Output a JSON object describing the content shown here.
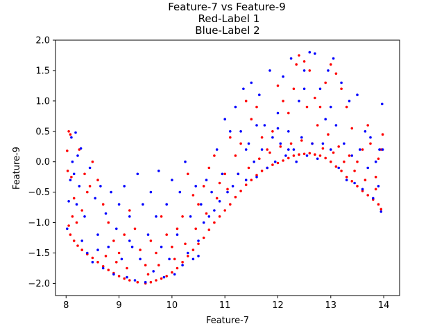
{
  "chart_data": {
    "type": "scatter",
    "title_lines": [
      "Feature-7 vs Feature-9",
      "Red-Label 1",
      "Blue-Label 2"
    ],
    "xlabel": "Feature-7",
    "ylabel": "Feature-9",
    "xlim": [
      7.8,
      14.3
    ],
    "ylim": [
      -2.2,
      2.0
    ],
    "xticks": [
      8,
      9,
      10,
      11,
      12,
      13,
      14
    ],
    "yticks": [
      -2.0,
      -1.5,
      -1.0,
      -0.5,
      0.0,
      0.5,
      1.0,
      1.5,
      2.0
    ],
    "ytick_labels": [
      "−2.0",
      "−1.5",
      "−1.0",
      "−0.5",
      "0.0",
      "0.5",
      "1.0",
      "1.5",
      "2.0"
    ],
    "grid": false,
    "legend": "none",
    "series": [
      {
        "color": "#ff0000",
        "points": [
          [
            8.02,
            0.18
          ],
          [
            8.05,
            0.5
          ],
          [
            8.08,
            0.45
          ],
          [
            8.03,
            -0.15
          ],
          [
            8.1,
            -0.25
          ],
          [
            8.15,
            -0.6
          ],
          [
            8.12,
            -0.9
          ],
          [
            8.05,
            -1.05
          ],
          [
            8.08,
            -1.2
          ],
          [
            8.15,
            -1.3
          ],
          [
            8.22,
            -1.38
          ],
          [
            8.3,
            -1.45
          ],
          [
            8.4,
            -1.52
          ],
          [
            8.5,
            -1.58
          ],
          [
            8.6,
            -1.65
          ],
          [
            8.7,
            -1.72
          ],
          [
            8.8,
            -1.78
          ],
          [
            8.9,
            -1.83
          ],
          [
            9.0,
            -1.88
          ],
          [
            9.1,
            -1.92
          ],
          [
            9.2,
            -1.95
          ],
          [
            9.35,
            -1.98
          ],
          [
            9.5,
            -2.0
          ],
          [
            9.6,
            -1.98
          ],
          [
            9.7,
            -1.95
          ],
          [
            9.8,
            -1.92
          ],
          [
            9.9,
            -1.88
          ],
          [
            10.0,
            -1.82
          ],
          [
            10.1,
            -1.75
          ],
          [
            10.2,
            -1.65
          ],
          [
            10.3,
            -1.55
          ],
          [
            10.4,
            -1.45
          ],
          [
            10.5,
            -1.35
          ],
          [
            10.6,
            -1.25
          ],
          [
            10.7,
            -1.12
          ],
          [
            10.8,
            -1.0
          ],
          [
            10.9,
            -0.9
          ],
          [
            11.0,
            -0.8
          ],
          [
            11.1,
            -0.7
          ],
          [
            11.2,
            -0.58
          ],
          [
            11.3,
            -0.48
          ],
          [
            11.4,
            -0.38
          ],
          [
            11.5,
            -0.3
          ],
          [
            11.6,
            -0.22
          ],
          [
            11.7,
            -0.15
          ],
          [
            11.8,
            -0.1
          ],
          [
            11.9,
            -0.05
          ],
          [
            12.0,
            -0.02
          ],
          [
            12.1,
            0.02
          ],
          [
            12.2,
            0.06
          ],
          [
            12.3,
            0.1
          ],
          [
            12.4,
            0.12
          ],
          [
            12.5,
            0.13
          ],
          [
            12.6,
            0.14
          ],
          [
            12.7,
            0.12
          ],
          [
            12.8,
            0.1
          ],
          [
            12.9,
            0.06
          ],
          [
            13.0,
            0.0
          ],
          [
            13.1,
            -0.08
          ],
          [
            13.2,
            -0.15
          ],
          [
            13.3,
            -0.25
          ],
          [
            13.4,
            -0.32
          ],
          [
            13.5,
            -0.4
          ],
          [
            13.6,
            -0.48
          ],
          [
            13.7,
            -0.55
          ],
          [
            13.8,
            -0.62
          ],
          [
            13.9,
            -0.7
          ],
          [
            13.95,
            -0.78
          ],
          [
            13.98,
            0.45
          ],
          [
            13.95,
            0.2
          ],
          [
            13.9,
            0.05
          ],
          [
            13.85,
            -0.25
          ],
          [
            13.75,
            0.3
          ],
          [
            13.7,
            0.6
          ],
          [
            13.6,
            0.2
          ],
          [
            13.5,
            0.0
          ],
          [
            13.4,
            0.55
          ],
          [
            13.3,
            0.9
          ],
          [
            13.2,
            1.2
          ],
          [
            13.1,
            1.45
          ],
          [
            13.0,
            1.6
          ],
          [
            12.9,
            1.3
          ],
          [
            12.8,
            0.9
          ],
          [
            12.7,
            1.05
          ],
          [
            12.6,
            1.5
          ],
          [
            12.5,
            1.65
          ],
          [
            12.4,
            1.75
          ],
          [
            12.35,
            1.6
          ],
          [
            12.3,
            1.2
          ],
          [
            12.2,
            0.8
          ],
          [
            12.1,
            1.0
          ],
          [
            12.0,
            1.25
          ],
          [
            11.9,
            0.5
          ],
          [
            11.8,
            0.2
          ],
          [
            11.7,
            0.4
          ],
          [
            11.6,
            0.9
          ],
          [
            11.5,
            0.7
          ],
          [
            11.4,
            1.0
          ],
          [
            11.3,
            0.3
          ],
          [
            11.2,
            0.1
          ],
          [
            11.1,
            0.4
          ],
          [
            11.0,
            -0.2
          ],
          [
            10.9,
            -0.35
          ],
          [
            10.8,
            0.1
          ],
          [
            10.7,
            -0.1
          ],
          [
            10.6,
            -0.4
          ],
          [
            10.5,
            -0.7
          ],
          [
            10.4,
            -0.55
          ],
          [
            10.3,
            -0.2
          ],
          [
            10.2,
            -0.9
          ],
          [
            10.1,
            -1.1
          ],
          [
            10.0,
            -1.4
          ],
          [
            9.9,
            -1.2
          ],
          [
            9.8,
            -0.9
          ],
          [
            9.7,
            -1.5
          ],
          [
            9.6,
            -1.3
          ],
          [
            9.5,
            -1.7
          ],
          [
            9.4,
            -1.45
          ],
          [
            9.3,
            -1.1
          ],
          [
            9.2,
            -0.8
          ],
          [
            9.1,
            -1.2
          ],
          [
            9.0,
            -1.5
          ],
          [
            8.9,
            -1.3
          ],
          [
            8.8,
            -1.0
          ],
          [
            8.7,
            -0.7
          ],
          [
            8.6,
            -0.3
          ],
          [
            8.5,
            0.0
          ],
          [
            8.4,
            -0.5
          ],
          [
            8.3,
            -0.8
          ],
          [
            8.2,
            -1.0
          ],
          [
            8.25,
            0.2
          ],
          [
            8.35,
            -0.2
          ],
          [
            8.45,
            -0.4
          ],
          [
            8.75,
            -1.55
          ],
          [
            8.95,
            -1.65
          ],
          [
            9.15,
            -1.75
          ],
          [
            9.55,
            -1.85
          ],
          [
            9.75,
            -1.7
          ],
          [
            10.05,
            -1.6
          ],
          [
            10.25,
            -1.35
          ],
          [
            10.45,
            -1.1
          ],
          [
            10.65,
            -0.85
          ],
          [
            10.85,
            -0.6
          ],
          [
            11.05,
            -0.45
          ],
          [
            11.25,
            -0.2
          ],
          [
            11.45,
            -0.1
          ],
          [
            11.65,
            0.05
          ],
          [
            11.85,
            0.15
          ],
          [
            12.05,
            0.25
          ],
          [
            12.25,
            0.3
          ],
          [
            12.45,
            0.35
          ],
          [
            12.65,
            0.3
          ],
          [
            12.85,
            0.22
          ],
          [
            13.05,
            0.15
          ],
          [
            13.25,
            0.0
          ],
          [
            13.45,
            -0.15
          ],
          [
            13.65,
            -0.3
          ],
          [
            13.85,
            -0.45
          ],
          [
            12.55,
            0.9
          ],
          [
            12.75,
            0.6
          ],
          [
            12.95,
            0.45
          ],
          [
            13.15,
            0.25
          ],
          [
            13.35,
            0.1
          ]
        ]
      },
      {
        "color": "#0000ff",
        "points": [
          [
            8.02,
            -1.1
          ],
          [
            8.05,
            -0.65
          ],
          [
            8.08,
            -0.3
          ],
          [
            8.1,
            0.4
          ],
          [
            8.12,
            0.0
          ],
          [
            8.15,
            -0.2
          ],
          [
            8.18,
            0.48
          ],
          [
            8.2,
            -0.7
          ],
          [
            8.22,
            0.1
          ],
          [
            8.25,
            -0.4
          ],
          [
            8.28,
            0.22
          ],
          [
            8.3,
            -1.3
          ],
          [
            8.35,
            -0.9
          ],
          [
            8.4,
            -1.5
          ],
          [
            8.45,
            -0.1
          ],
          [
            8.5,
            -1.65
          ],
          [
            8.55,
            -0.6
          ],
          [
            8.6,
            -1.2
          ],
          [
            8.65,
            -0.4
          ],
          [
            8.7,
            -1.75
          ],
          [
            8.75,
            -0.85
          ],
          [
            8.8,
            -1.4
          ],
          [
            8.85,
            -0.5
          ],
          [
            8.9,
            -1.85
          ],
          [
            8.95,
            -1.1
          ],
          [
            9.0,
            -0.7
          ],
          [
            9.05,
            -1.6
          ],
          [
            9.1,
            -0.4
          ],
          [
            9.15,
            -1.9
          ],
          [
            9.2,
            -0.9
          ],
          [
            9.25,
            -1.4
          ],
          [
            9.3,
            -1.95
          ],
          [
            9.35,
            -0.2
          ],
          [
            9.4,
            -1.6
          ],
          [
            9.45,
            -0.7
          ],
          [
            9.5,
            -1.98
          ],
          [
            9.55,
            -1.2
          ],
          [
            9.6,
            -0.5
          ],
          [
            9.65,
            -1.8
          ],
          [
            9.7,
            -0.9
          ],
          [
            9.75,
            -0.15
          ],
          [
            9.8,
            -1.4
          ],
          [
            9.85,
            -1.9
          ],
          [
            9.9,
            -0.7
          ],
          [
            9.95,
            -1.6
          ],
          [
            10.0,
            -0.3
          ],
          [
            10.05,
            -1.85
          ],
          [
            10.1,
            -1.2
          ],
          [
            10.15,
            -0.5
          ],
          [
            10.2,
            -1.7
          ],
          [
            10.25,
            0.0
          ],
          [
            10.3,
            -1.5
          ],
          [
            10.35,
            -0.9
          ],
          [
            10.4,
            -1.6
          ],
          [
            10.45,
            -0.4
          ],
          [
            10.5,
            -1.3
          ],
          [
            10.55,
            -0.7
          ],
          [
            10.6,
            -1.0
          ],
          [
            10.65,
            -0.3
          ],
          [
            10.7,
            -0.9
          ],
          [
            10.75,
            -0.5
          ],
          [
            10.8,
            -0.8
          ],
          [
            10.85,
            0.2
          ],
          [
            10.9,
            -0.65
          ],
          [
            10.95,
            -0.2
          ],
          [
            11.0,
            0.7
          ],
          [
            11.05,
            -0.5
          ],
          [
            11.1,
            0.5
          ],
          [
            11.15,
            -0.4
          ],
          [
            11.2,
            0.9
          ],
          [
            11.25,
            -0.2
          ],
          [
            11.3,
            0.5
          ],
          [
            11.35,
            1.2
          ],
          [
            11.4,
            -0.3
          ],
          [
            11.45,
            0.3
          ],
          [
            11.5,
            1.3
          ],
          [
            11.55,
            0.0
          ],
          [
            11.6,
            -0.25
          ],
          [
            11.65,
            1.1
          ],
          [
            11.7,
            0.2
          ],
          [
            11.75,
            0.6
          ],
          [
            11.8,
            -0.1
          ],
          [
            11.85,
            1.5
          ],
          [
            11.9,
            0.4
          ],
          [
            11.95,
            0.0
          ],
          [
            12.0,
            0.8
          ],
          [
            12.05,
            0.3
          ],
          [
            12.1,
            1.4
          ],
          [
            12.15,
            0.1
          ],
          [
            12.2,
            0.5
          ],
          [
            12.25,
            1.7
          ],
          [
            12.3,
            0.2
          ],
          [
            12.35,
            0.0
          ],
          [
            12.4,
            1.0
          ],
          [
            12.45,
            0.4
          ],
          [
            12.5,
            1.5
          ],
          [
            12.55,
            0.1
          ],
          [
            12.6,
            1.8
          ],
          [
            12.65,
            0.3
          ],
          [
            12.7,
            1.78
          ],
          [
            12.75,
            0.05
          ],
          [
            12.8,
            1.2
          ],
          [
            12.85,
            0.3
          ],
          [
            12.9,
            0.7
          ],
          [
            12.95,
            1.5
          ],
          [
            13.0,
            0.2
          ],
          [
            13.05,
            1.7
          ],
          [
            13.1,
            0.6
          ],
          [
            13.15,
            -0.1
          ],
          [
            13.2,
            1.3
          ],
          [
            13.25,
            0.3
          ],
          [
            13.3,
            -0.3
          ],
          [
            13.35,
            1.0
          ],
          [
            13.4,
            0.1
          ],
          [
            13.45,
            -0.35
          ],
          [
            13.5,
            1.1
          ],
          [
            13.55,
            0.2
          ],
          [
            13.6,
            -0.45
          ],
          [
            13.65,
            0.5
          ],
          [
            13.7,
            -0.1
          ],
          [
            13.75,
            0.4
          ],
          [
            13.8,
            -0.6
          ],
          [
            13.85,
            0.0
          ],
          [
            13.9,
            -0.4
          ],
          [
            13.92,
            0.2
          ],
          [
            13.95,
            -0.82
          ],
          [
            13.97,
            0.95
          ],
          [
            13.98,
            0.2
          ],
          [
            12.0,
            0.55
          ],
          [
            12.2,
            0.2
          ],
          [
            11.4,
            0.2
          ],
          [
            11.6,
            0.6
          ],
          [
            10.5,
            -1.55
          ],
          [
            9.2,
            -1.3
          ],
          [
            8.6,
            -1.45
          ],
          [
            12.5,
            1.2
          ],
          [
            13.0,
            0.9
          ]
        ]
      }
    ]
  }
}
